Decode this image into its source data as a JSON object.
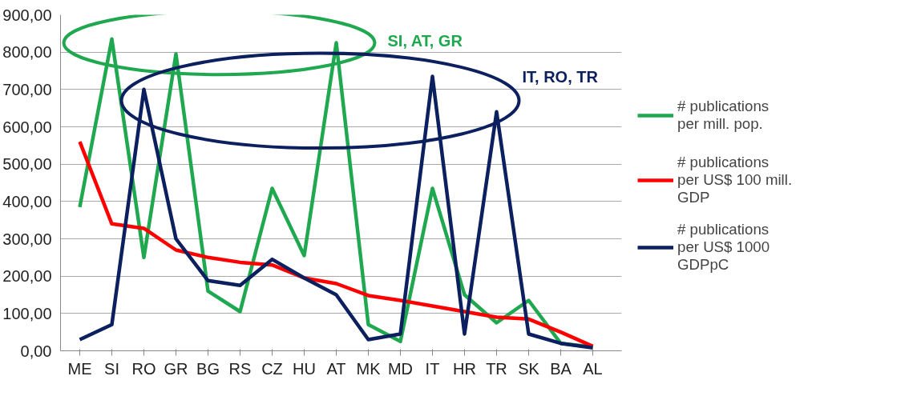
{
  "chart_data": {
    "type": "line",
    "categories": [
      "ME",
      "SI",
      "RO",
      "GR",
      "BG",
      "RS",
      "CZ",
      "HU",
      "AT",
      "MK",
      "MD",
      "IT",
      "HR",
      "TR",
      "SK",
      "BA",
      "AL"
    ],
    "series": [
      {
        "name": "# publications per mill. pop.",
        "color": "#1fa84f",
        "values": [
          385,
          835,
          250,
          795,
          160,
          105,
          435,
          255,
          825,
          70,
          25,
          435,
          150,
          75,
          135,
          20,
          10
        ]
      },
      {
        "name": "# publications per US$ 100 mill. GDP",
        "color": "#ff0000",
        "values": [
          560,
          340,
          328,
          270,
          250,
          237,
          230,
          195,
          180,
          148,
          135,
          120,
          105,
          90,
          85,
          50,
          12
        ]
      },
      {
        "name": "# publications per US$ 1000 GDPpC",
        "color": "#0c1f5e",
        "values": [
          30,
          70,
          700,
          300,
          188,
          175,
          245,
          195,
          150,
          30,
          45,
          735,
          45,
          640,
          45,
          20,
          8
        ]
      }
    ],
    "ylim": [
      0,
      900
    ],
    "yticks": [
      {
        "value": 0,
        "label": "0,00"
      },
      {
        "value": 100,
        "label": "100,00"
      },
      {
        "value": 200,
        "label": "200,00"
      },
      {
        "value": 300,
        "label": "300,00"
      },
      {
        "value": 400,
        "label": "400,00"
      },
      {
        "value": 500,
        "label": "500,00"
      },
      {
        "value": 600,
        "label": "600,00"
      },
      {
        "value": 700,
        "label": "700,00"
      },
      {
        "value": 800,
        "label": "800,00"
      },
      {
        "value": 900,
        "label": "900,00"
      }
    ],
    "grid": "y",
    "legend": "right",
    "marker": "none",
    "line_style": "solid",
    "annotations": [
      "SI, AT, GR",
      "IT, RO, TR"
    ]
  }
}
